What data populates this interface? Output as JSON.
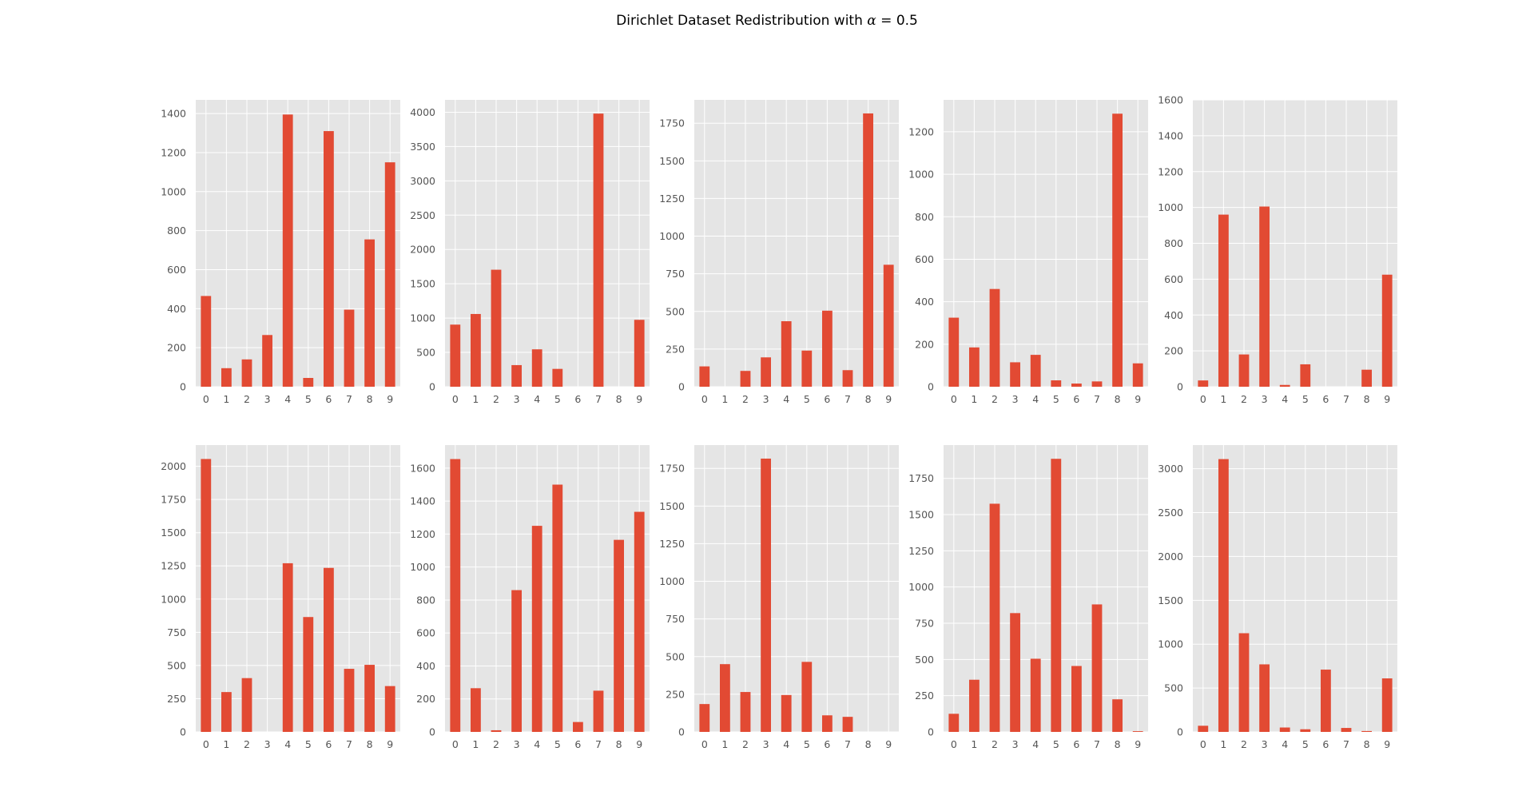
{
  "figure": {
    "title_prefix": "Dirichlet Dataset Redistribution with ",
    "title_symbol": "α",
    "title_suffix": " = 0.5",
    "bar_color": "#E24A33",
    "panel_bg": "#E5E5E5",
    "grid_color": "#FFFFFF"
  },
  "chart_data": [
    {
      "type": "bar",
      "categories": [
        "0",
        "1",
        "2",
        "3",
        "4",
        "5",
        "6",
        "7",
        "8",
        "9"
      ],
      "values": [
        465,
        95,
        140,
        265,
        1395,
        45,
        1310,
        395,
        755,
        1150
      ],
      "ylim": [
        0,
        1470
      ],
      "yticks": [
        0,
        200,
        400,
        600,
        800,
        1000,
        1200,
        1400
      ],
      "grid": true
    },
    {
      "type": "bar",
      "categories": [
        "0",
        "1",
        "2",
        "3",
        "4",
        "5",
        "6",
        "7",
        "8",
        "9"
      ],
      "values": [
        905,
        1060,
        1705,
        315,
        545,
        260,
        0,
        3980,
        0,
        975
      ],
      "ylim": [
        0,
        4180
      ],
      "yticks": [
        0,
        500,
        1000,
        1500,
        2000,
        2500,
        3000,
        3500,
        4000
      ],
      "grid": true
    },
    {
      "type": "bar",
      "categories": [
        "0",
        "1",
        "2",
        "3",
        "4",
        "5",
        "6",
        "7",
        "8",
        "9"
      ],
      "values": [
        135,
        0,
        105,
        195,
        435,
        240,
        505,
        110,
        1815,
        810
      ],
      "ylim": [
        0,
        1905
      ],
      "yticks": [
        0,
        250,
        500,
        750,
        1000,
        1250,
        1500,
        1750
      ],
      "grid": true
    },
    {
      "type": "bar",
      "categories": [
        "0",
        "1",
        "2",
        "3",
        "4",
        "5",
        "6",
        "7",
        "8",
        "9"
      ],
      "values": [
        325,
        185,
        460,
        115,
        150,
        30,
        15,
        25,
        1285,
        110
      ],
      "ylim": [
        0,
        1350
      ],
      "yticks": [
        0,
        200,
        400,
        600,
        800,
        1000,
        1200
      ],
      "grid": true
    },
    {
      "type": "bar",
      "categories": [
        "0",
        "1",
        "2",
        "3",
        "4",
        "5",
        "6",
        "7",
        "8",
        "9"
      ],
      "values": [
        35,
        960,
        180,
        1005,
        10,
        125,
        0,
        0,
        95,
        625
      ],
      "ylim": [
        0,
        1600
      ],
      "yticks": [
        0,
        200,
        400,
        600,
        800,
        1000,
        1200,
        1400,
        1600
      ],
      "grid": true
    },
    {
      "type": "bar",
      "categories": [
        "0",
        "1",
        "2",
        "3",
        "4",
        "5",
        "6",
        "7",
        "8",
        "9"
      ],
      "values": [
        2055,
        300,
        405,
        0,
        1270,
        865,
        1235,
        475,
        505,
        345
      ],
      "ylim": [
        0,
        2160
      ],
      "yticks": [
        0,
        250,
        500,
        750,
        1000,
        1250,
        1500,
        1750,
        2000
      ],
      "grid": true
    },
    {
      "type": "bar",
      "categories": [
        "0",
        "1",
        "2",
        "3",
        "4",
        "5",
        "6",
        "7",
        "8",
        "9"
      ],
      "values": [
        1655,
        265,
        10,
        860,
        1250,
        1500,
        60,
        250,
        1165,
        1335
      ],
      "ylim": [
        0,
        1740
      ],
      "yticks": [
        0,
        200,
        400,
        600,
        800,
        1000,
        1200,
        1400,
        1600
      ],
      "grid": true
    },
    {
      "type": "bar",
      "categories": [
        "0",
        "1",
        "2",
        "3",
        "4",
        "5",
        "6",
        "7",
        "8",
        "9"
      ],
      "values": [
        185,
        450,
        265,
        1815,
        245,
        465,
        110,
        100,
        0,
        0
      ],
      "ylim": [
        0,
        1905
      ],
      "yticks": [
        0,
        250,
        500,
        750,
        1000,
        1250,
        1500,
        1750
      ],
      "grid": true
    },
    {
      "type": "bar",
      "categories": [
        "0",
        "1",
        "2",
        "3",
        "4",
        "5",
        "6",
        "7",
        "8",
        "9"
      ],
      "values": [
        125,
        360,
        1575,
        820,
        505,
        1885,
        455,
        880,
        225,
        5
      ],
      "ylim": [
        0,
        1980
      ],
      "yticks": [
        0,
        250,
        500,
        750,
        1000,
        1250,
        1500,
        1750
      ],
      "grid": true
    },
    {
      "type": "bar",
      "categories": [
        "0",
        "1",
        "2",
        "3",
        "4",
        "5",
        "6",
        "7",
        "8",
        "9"
      ],
      "values": [
        70,
        3110,
        1125,
        770,
        50,
        30,
        710,
        45,
        10,
        610
      ],
      "ylim": [
        0,
        3270
      ],
      "yticks": [
        0,
        500,
        1000,
        1500,
        2000,
        2500,
        3000
      ],
      "grid": true
    }
  ]
}
